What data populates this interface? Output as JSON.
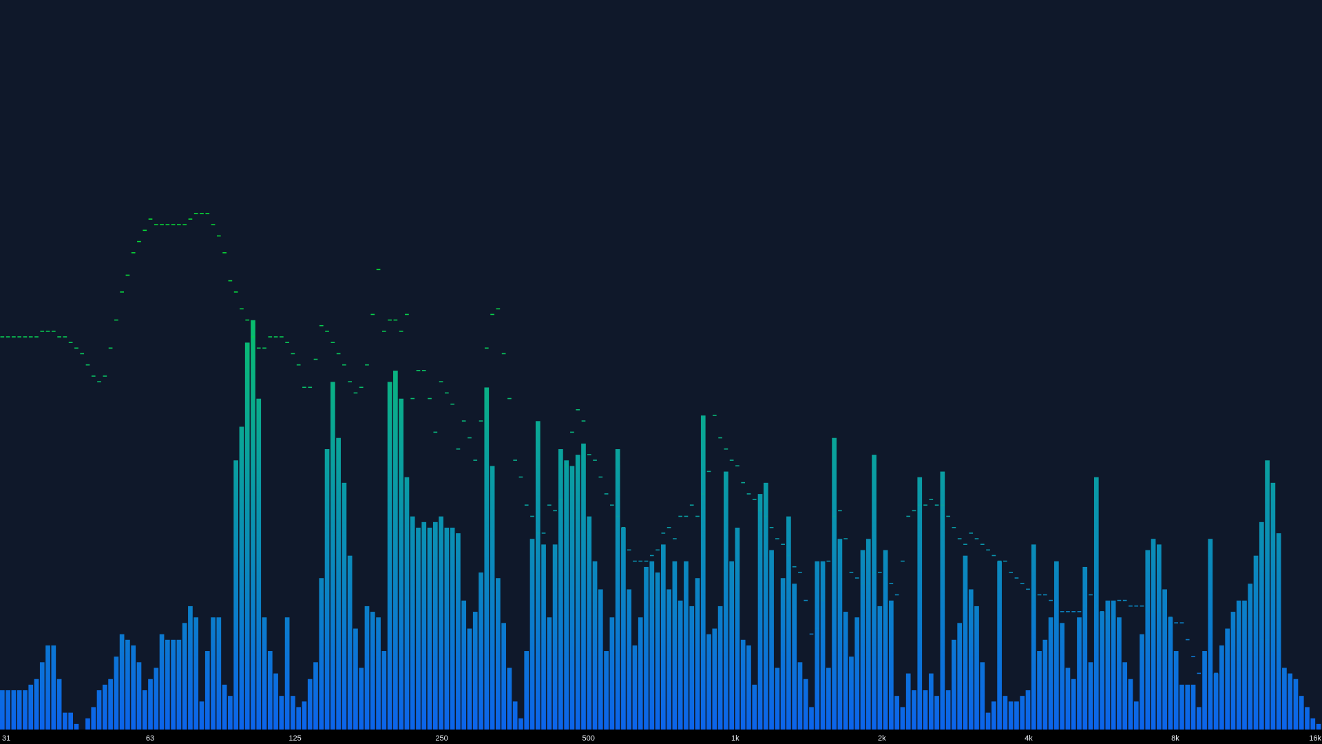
{
  "chart_data": {
    "type": "bar",
    "title": "",
    "xlabel": "",
    "ylabel": "",
    "x_scale": "log",
    "xlim": [
      31,
      16000
    ],
    "ylim": [
      0,
      1
    ],
    "grid": false,
    "legend": "none",
    "colors": {
      "background": "#0f182a",
      "axis_strip": "#000000",
      "tick_label": "#e8ecf2",
      "bar_low": "#0c64eb",
      "bar_mid": "#0aa39b",
      "bar_high": "#08dc37"
    },
    "tick_labels": [
      "31",
      "63",
      "125",
      "250",
      "500",
      "1k",
      "2k",
      "4k",
      "8k",
      "16k"
    ],
    "tick_values": [
      31,
      63,
      125,
      250,
      500,
      1000,
      2000,
      4000,
      8000,
      16000
    ],
    "series": [
      {
        "kind": "level_bars",
        "values": [
          0.07,
          0.07,
          0.07,
          0.07,
          0.07,
          0.08,
          0.09,
          0.12,
          0.15,
          0.15,
          0.09,
          0.03,
          0.03,
          0.01,
          0,
          0.02,
          0.04,
          0.07,
          0.08,
          0.09,
          0.13,
          0.17,
          0.16,
          0.15,
          0.12,
          0.07,
          0.09,
          0.11,
          0.17,
          0.16,
          0.16,
          0.16,
          0.19,
          0.22,
          0.2,
          0.05,
          0.14,
          0.2,
          0.2,
          0.08,
          0.06,
          0.48,
          0.54,
          0.69,
          0.73,
          0.59,
          0.2,
          0.14,
          0.1,
          0.06,
          0.2,
          0.06,
          0.04,
          0.05,
          0.09,
          0.12,
          0.27,
          0.5,
          0.62,
          0.52,
          0.44,
          0.31,
          0.18,
          0.11,
          0.22,
          0.21,
          0.2,
          0.14,
          0.62,
          0.64,
          0.59,
          0.45,
          0.38,
          0.36,
          0.37,
          0.36,
          0.37,
          0.38,
          0.36,
          0.36,
          0.35,
          0.23,
          0.18,
          0.21,
          0.28,
          0.61,
          0.47,
          0.27,
          0.19,
          0.11,
          0.05,
          0.02,
          0.14,
          0.34,
          0.55,
          0.33,
          0.2,
          0.33,
          0.5,
          0.48,
          0.47,
          0.49,
          0.51,
          0.38,
          0.3,
          0.25,
          0.14,
          0.2,
          0.5,
          0.36,
          0.25,
          0.15,
          0.2,
          0.29,
          0.3,
          0.28,
          0.33,
          0.25,
          0.3,
          0.23,
          0.3,
          0.22,
          0.27,
          0.56,
          0.17,
          0.18,
          0.22,
          0.46,
          0.3,
          0.36,
          0.16,
          0.15,
          0.08,
          0.42,
          0.44,
          0.32,
          0.11,
          0.27,
          0.38,
          0.26,
          0.12,
          0.09,
          0.04,
          0.3,
          0.3,
          0.11,
          0.52,
          0.34,
          0.21,
          0.13,
          0.2,
          0.32,
          0.34,
          0.49,
          0.22,
          0.32,
          0.23,
          0.06,
          0.04,
          0.1,
          0.07,
          0.45,
          0.07,
          0.1,
          0.06,
          0.46,
          0.07,
          0.16,
          0.19,
          0.31,
          0.25,
          0.22,
          0.12,
          0.03,
          0.05,
          0.3,
          0.06,
          0.05,
          0.05,
          0.06,
          0.07,
          0.33,
          0.14,
          0.16,
          0.2,
          0.3,
          0.19,
          0.11,
          0.09,
          0.2,
          0.29,
          0.12,
          0.45,
          0.21,
          0.23,
          0.23,
          0.2,
          0.12,
          0.09,
          0.05,
          0.17,
          0.32,
          0.34,
          0.33,
          0.25,
          0.2,
          0.14,
          0.08,
          0.08,
          0.08,
          0.04,
          0.14,
          0.34,
          0.1,
          0.15,
          0.18,
          0.21,
          0.23,
          0.23,
          0.26,
          0.31,
          0.37,
          0.48,
          0.44,
          0.35,
          0.11,
          0.1,
          0.09,
          0.06,
          0.04,
          0.02,
          0.01
        ]
      },
      {
        "kind": "peak_hold",
        "values": [
          0.7,
          0.7,
          0.7,
          0.7,
          0.7,
          0.7,
          0.7,
          0.71,
          0.71,
          0.71,
          0.7,
          0.7,
          0.69,
          0.68,
          0.67,
          0.65,
          0.63,
          0.62,
          0.63,
          0.68,
          0.73,
          0.78,
          0.81,
          0.85,
          0.87,
          0.89,
          0.91,
          0.9,
          0.9,
          0.9,
          0.9,
          0.9,
          0.9,
          0.91,
          0.92,
          0.92,
          0.92,
          0.9,
          0.88,
          0.85,
          0.8,
          0.78,
          0.75,
          0.73,
          0.7,
          0.68,
          0.68,
          0.7,
          0.7,
          0.7,
          0.69,
          0.67,
          0.65,
          0.61,
          0.61,
          0.66,
          0.72,
          0.71,
          0.69,
          0.67,
          0.65,
          0.62,
          0.6,
          0.61,
          0.65,
          0.74,
          0.82,
          0.71,
          0.73,
          0.73,
          0.71,
          0.74,
          0.59,
          0.64,
          0.64,
          0.59,
          0.53,
          0.62,
          0.6,
          0.58,
          0.5,
          0.55,
          0.52,
          0.48,
          0.55,
          0.68,
          0.74,
          0.75,
          0.67,
          0.59,
          0.48,
          0.45,
          0.4,
          0.38,
          0.35,
          0.35,
          0.4,
          0.39,
          0.41,
          0.47,
          0.53,
          0.57,
          0.55,
          0.49,
          0.48,
          0.45,
          0.42,
          0.4,
          0.38,
          0.36,
          0.32,
          0.3,
          0.3,
          0.3,
          0.31,
          0.32,
          0.35,
          0.36,
          0.34,
          0.38,
          0.38,
          0.4,
          0.38,
          0.42,
          0.46,
          0.56,
          0.52,
          0.5,
          0.48,
          0.47,
          0.44,
          0.42,
          0.41,
          0.39,
          0.38,
          0.36,
          0.34,
          0.33,
          0.31,
          0.29,
          0.28,
          0.23,
          0.17,
          0.18,
          0.23,
          0.3,
          0.38,
          0.39,
          0.34,
          0.28,
          0.27,
          0.26,
          0.26,
          0.28,
          0.28,
          0.27,
          0.26,
          0.24,
          0.3,
          0.38,
          0.39,
          0.4,
          0.4,
          0.41,
          0.4,
          0.4,
          0.38,
          0.36,
          0.34,
          0.33,
          0.35,
          0.34,
          0.33,
          0.32,
          0.31,
          0.3,
          0.3,
          0.28,
          0.27,
          0.26,
          0.25,
          0.24,
          0.24,
          0.24,
          0.23,
          0.22,
          0.21,
          0.21,
          0.21,
          0.21,
          0.22,
          0.24,
          0.22,
          0.21,
          0.2,
          0.2,
          0.23,
          0.23,
          0.22,
          0.22,
          0.22,
          0.21,
          0.21,
          0.21,
          0.21,
          0.2,
          0.19,
          0.19,
          0.16,
          0.13,
          0.1,
          0.1,
          0.1,
          0.1,
          0.1,
          0.1,
          0.1,
          0.12,
          0.13,
          0.14,
          0.15,
          0.16,
          0.16,
          0.14,
          0.1,
          0.1,
          0.03,
          0.03,
          0.02,
          0.01
        ]
      }
    ]
  }
}
